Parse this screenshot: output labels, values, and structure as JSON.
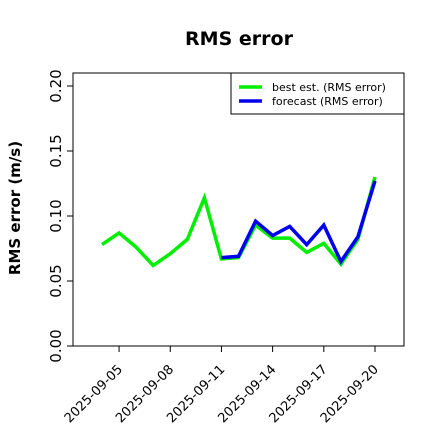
{
  "chart_data": {
    "type": "line",
    "title": "RMS error",
    "xlabel": "",
    "ylabel": "RMS error (m/s)",
    "ylim": [
      0.0,
      0.21
    ],
    "yticks": [
      "0.00",
      "0.05",
      "0.10",
      "0.15",
      "0.20"
    ],
    "xticks": [
      {
        "label": "2025-09-05",
        "day": 5,
        "color": "#000000"
      },
      {
        "label": "2025-09-08",
        "day": 8,
        "color": "#000000"
      },
      {
        "label": "2025-09-11",
        "day": 11,
        "color": "#1f8c1f"
      },
      {
        "label": "2025-09-14",
        "day": 14,
        "color": "#000000"
      },
      {
        "label": "2025-09-17",
        "day": 17,
        "color": "#000000"
      },
      {
        "label": "2025-09-20",
        "day": 20,
        "color": "#000000"
      }
    ],
    "xlim": [
      2.3,
      21.7
    ],
    "grid": false,
    "legend_position": "top-right",
    "series": [
      {
        "name": "best est. (RMS error)",
        "color": "#00ee00",
        "points": [
          {
            "x": 4.0,
            "y": 0.078
          },
          {
            "x": 5.0,
            "y": 0.087
          },
          {
            "x": 6.0,
            "y": 0.076
          },
          {
            "x": 7.0,
            "y": 0.062
          },
          {
            "x": 8.0,
            "y": 0.071
          },
          {
            "x": 9.0,
            "y": 0.082
          },
          {
            "x": 10.0,
            "y": 0.114
          },
          {
            "x": 11.0,
            "y": 0.067
          },
          {
            "x": 12.0,
            "y": 0.068
          },
          {
            "x": 13.0,
            "y": 0.093
          },
          {
            "x": 14.0,
            "y": 0.083
          },
          {
            "x": 15.0,
            "y": 0.083
          },
          {
            "x": 16.0,
            "y": 0.072
          },
          {
            "x": 17.0,
            "y": 0.079
          },
          {
            "x": 18.0,
            "y": 0.063
          },
          {
            "x": 19.0,
            "y": 0.082
          },
          {
            "x": 20.0,
            "y": 0.13
          }
        ]
      },
      {
        "name": "forecast (RMS error)",
        "color": "#0000ee",
        "points": [
          {
            "x": 11.0,
            "y": 0.068
          },
          {
            "x": 12.0,
            "y": 0.069
          },
          {
            "x": 13.0,
            "y": 0.096
          },
          {
            "x": 14.0,
            "y": 0.085
          },
          {
            "x": 15.0,
            "y": 0.092
          },
          {
            "x": 16.0,
            "y": 0.078
          },
          {
            "x": 17.0,
            "y": 0.093
          },
          {
            "x": 18.0,
            "y": 0.065
          },
          {
            "x": 19.0,
            "y": 0.084
          },
          {
            "x": 20.0,
            "y": 0.127
          }
        ]
      }
    ]
  }
}
